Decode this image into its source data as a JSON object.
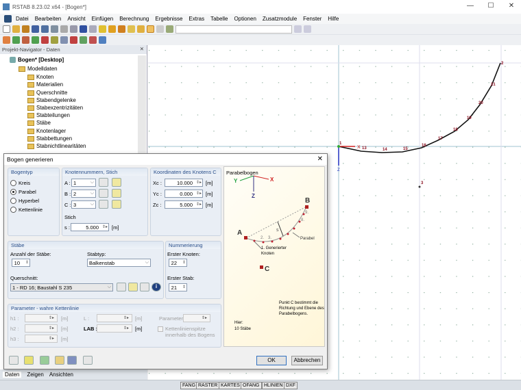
{
  "window": {
    "title": "RSTAB 8.23.02 x64 - [Bogen*]"
  },
  "menu": [
    "Datei",
    "Bearbeiten",
    "Ansicht",
    "Einfügen",
    "Berechnung",
    "Ergebnisse",
    "Extras",
    "Tabelle",
    "Optionen",
    "Zusatzmodule",
    "Fenster",
    "Hilfe"
  ],
  "navigator": {
    "title": "Projekt-Navigator - Daten",
    "root": "Bogen* [Desktop]",
    "model": "Modelldaten",
    "items": [
      "Knoten",
      "Materialien",
      "Querschnitte",
      "Stabendgelenke",
      "Stabexzentrizitäten",
      "Stabteilungen",
      "Stäbe",
      "Knotenlager",
      "Stabbettungen",
      "Stabnichtlinearitäten"
    ],
    "tabs": [
      "Daten",
      "Zeigen",
      "Ansichten"
    ]
  },
  "graphics": {
    "nodes": [
      "1",
      "13",
      "14",
      "15",
      "16",
      "17",
      "18",
      "19",
      "20",
      "21",
      "2",
      "3"
    ],
    "axis_x": "X",
    "axis_z": "Z"
  },
  "statusbar": [
    "FANG",
    "RASTER",
    "KARTES",
    "OFANG",
    "HLINIEN",
    "DXF"
  ],
  "dialog": {
    "title": "Bogen generieren",
    "bogentyp": {
      "title": "Bogentyp",
      "options": [
        "Kreis",
        "Parabel",
        "Hyperbel",
        "Kettenlinie"
      ],
      "selected": "Parabel"
    },
    "knoten": {
      "title": "Knotennummern, Stich",
      "a_label": "A :",
      "a": "1",
      "b_label": "B :",
      "b": "2",
      "c_label": "C :",
      "c": "3",
      "stich_label": "Stich",
      "s_label": "s :",
      "s": "5.000",
      "unit": "[m]"
    },
    "koord": {
      "title": "Koordinaten des Knotens C",
      "xc_label": "Xc :",
      "xc": "10.000",
      "yc_label": "Yc :",
      "yc": "0.000",
      "zc_label": "Zc :",
      "zc": "5.000",
      "unit": "[m]"
    },
    "staebe": {
      "title": "Stäbe",
      "anzahl_label": "Anzahl der Stäbe:",
      "anzahl": "10",
      "stabtyp_label": "Stabtyp:",
      "stabtyp": "Balkenstab",
      "querschnitt_label": "Querschnitt:",
      "querschnitt": "1 - RD 16; Baustahl S 235"
    },
    "nummerierung": {
      "title": "Nummerierung",
      "knoten_label": "Erster Knoten:",
      "knoten": "22",
      "stab_label": "Erster Stab:",
      "stab": "21"
    },
    "parameter": {
      "title": "Parameter - wahre Kettenlinie",
      "h1": "h1 :",
      "h2": "h2 :",
      "h3": "h3 :",
      "l": "L :",
      "lab": "LAB :",
      "param": "Parameter:",
      "unit": "[m]",
      "checkbox": "Kettenlinienspitze innerhalb des Bogens"
    },
    "preview": {
      "title": "Parabelbogen",
      "y": "Y",
      "x": "X",
      "z": "Z",
      "a": "A",
      "b": "B",
      "c": "C",
      "s": "s",
      "n2": "2.",
      "n3": "3.",
      "n8": "8.",
      "n9": "9.",
      "parabel": "Parabel",
      "gen": "1. Generierter Knoten",
      "note": "Punkt C bestimmt die Richtung und Ebene des Parabelbogens.",
      "hier": "Hier:",
      "count": "10 Stäbe"
    },
    "ok": "OK",
    "cancel": "Abbrechen"
  }
}
